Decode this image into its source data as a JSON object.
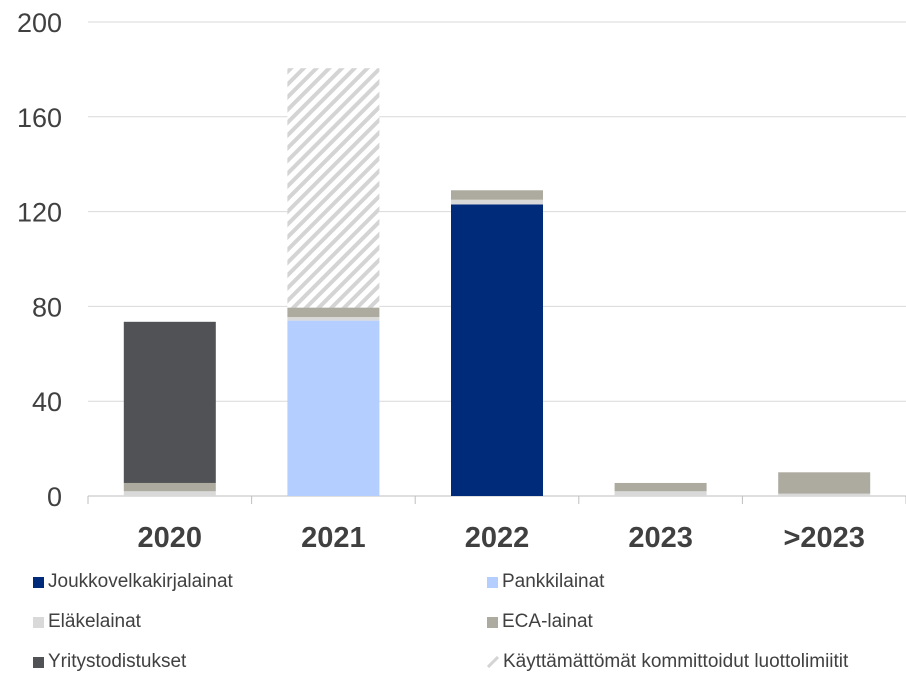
{
  "chart_data": {
    "type": "bar",
    "stacked": true,
    "categories": [
      "2020",
      "2021",
      "2022",
      "2023",
      ">2023"
    ],
    "ylim": [
      0,
      200
    ],
    "yticks": [
      0,
      40,
      80,
      120,
      160,
      200
    ],
    "grid": true,
    "legend_position": "bottom",
    "series": [
      {
        "name": "Joukkovelkakirjalainat",
        "color": "#002b7a",
        "values": [
          0,
          0,
          123,
          0,
          0
        ]
      },
      {
        "name": "Pankkilainat",
        "color": "#b4ceff",
        "values": [
          0,
          74,
          0,
          0,
          0
        ]
      },
      {
        "name": "Eläkelainat",
        "color": "#d9d9d9",
        "values": [
          2,
          1.5,
          2,
          2,
          1
        ]
      },
      {
        "name": "ECA-lainat",
        "color": "#adab9f",
        "values": [
          3.5,
          4,
          4,
          3.5,
          9
        ]
      },
      {
        "name": "Yritystodistukset",
        "color": "#515255",
        "values": [
          68,
          0,
          0,
          0,
          0
        ]
      },
      {
        "name": "Käyttämättömät kommittoidut luottolimiitit",
        "color": "#d9d9d9",
        "pattern": "hatch",
        "values": [
          0,
          101,
          0,
          0,
          0
        ]
      }
    ]
  }
}
